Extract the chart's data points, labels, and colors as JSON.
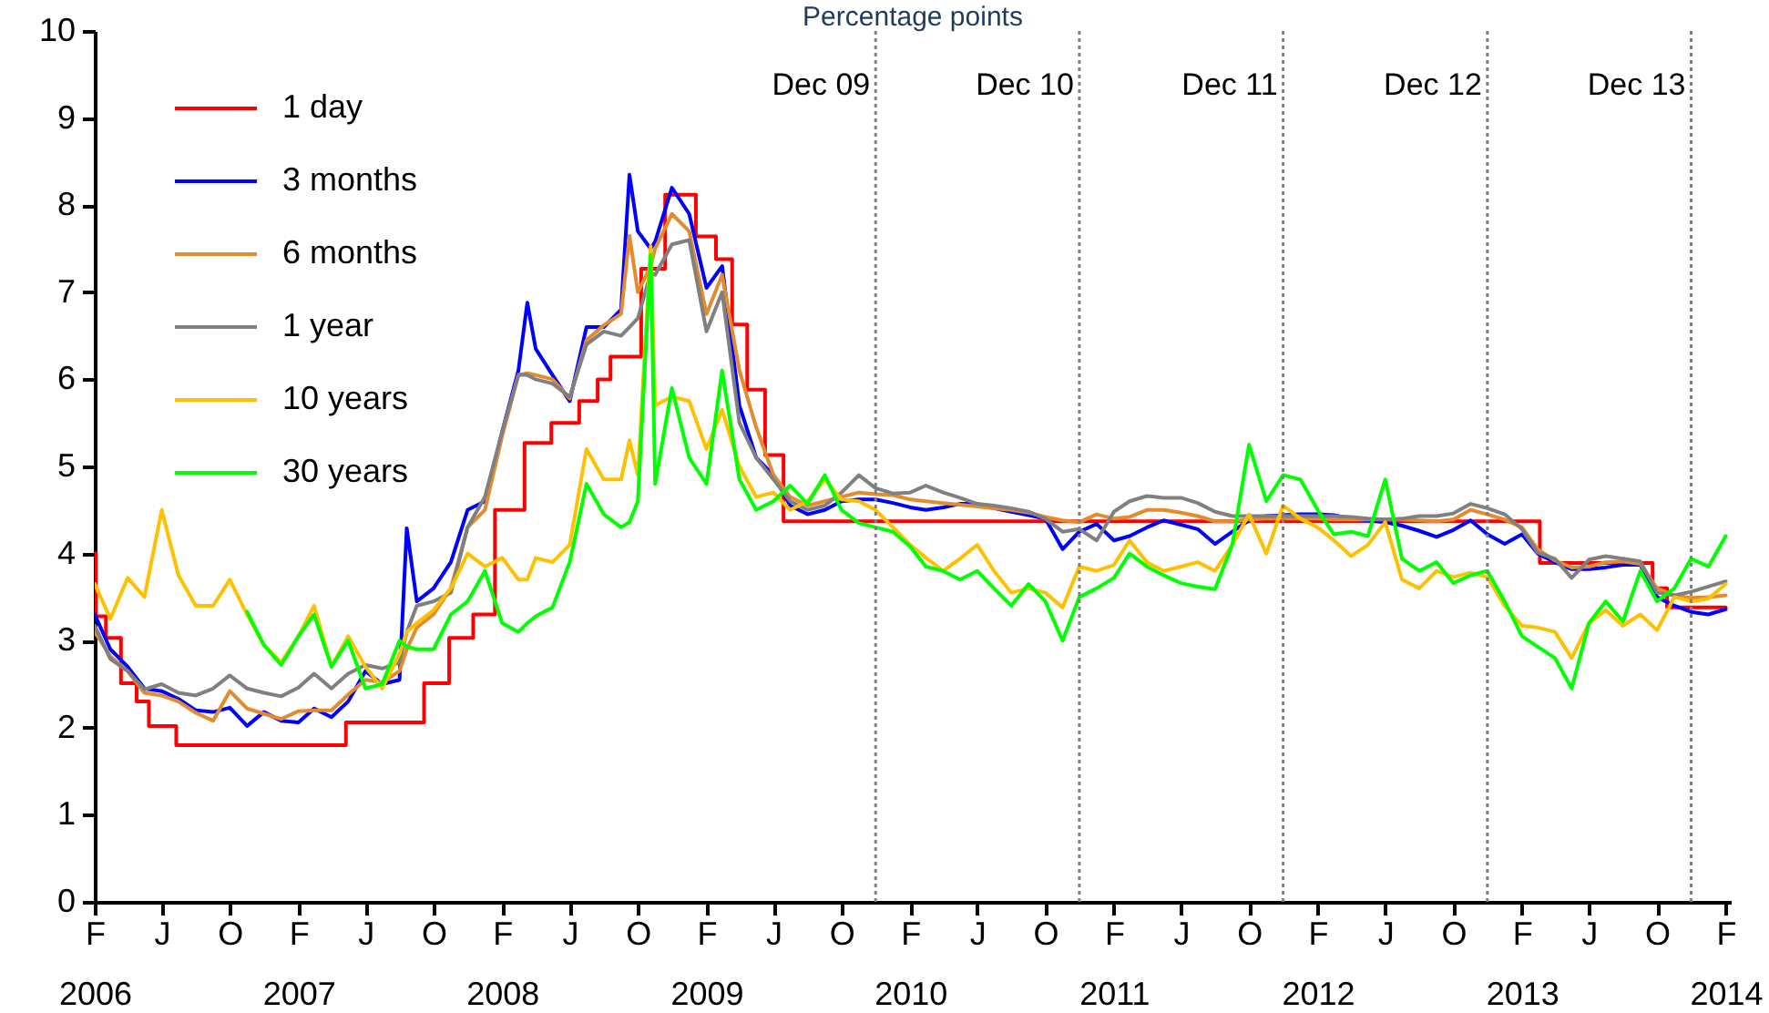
{
  "chart_data": {
    "type": "line",
    "title": "Percentage points",
    "x": [
      "2006-02",
      "2006-03",
      "2006-04",
      "2006-05",
      "2006-06",
      "2006-07",
      "2006-08",
      "2006-09",
      "2006-10",
      "2006-11",
      "2006-12",
      "2007-01",
      "2007-02",
      "2007-03",
      "2007-04",
      "2007-05",
      "2007-06",
      "2007-07",
      "2007-08",
      "2007-08-14",
      "2007-09",
      "2007-10",
      "2007-11",
      "2007-12",
      "2008-01",
      "2008-02",
      "2008-03",
      "2008-03-17",
      "2008-04",
      "2008-05",
      "2008-06",
      "2008-07",
      "2008-08",
      "2008-09",
      "2008-09-16",
      "2008-10",
      "2008-10-24",
      "2008-11",
      "2008-12",
      "2009-01",
      "2009-02",
      "2009-03",
      "2009-04",
      "2009-05",
      "2009-06",
      "2009-07",
      "2009-08",
      "2009-09",
      "2009-10",
      "2009-11",
      "2009-12",
      "2010-01",
      "2010-02",
      "2010-03",
      "2010-04",
      "2010-05",
      "2010-06",
      "2010-07",
      "2010-08",
      "2010-09",
      "2010-10",
      "2010-11",
      "2010-12",
      "2011-01",
      "2011-02",
      "2011-03",
      "2011-04",
      "2011-05",
      "2011-06",
      "2011-07",
      "2011-08",
      "2011-09",
      "2011-10",
      "2011-11",
      "2011-12",
      "2012-01",
      "2012-02",
      "2012-03",
      "2012-04",
      "2012-05",
      "2012-06",
      "2012-07",
      "2012-08",
      "2012-09",
      "2012-10",
      "2012-11",
      "2012-12",
      "2013-01",
      "2013-02",
      "2013-03",
      "2013-04",
      "2013-05",
      "2013-06",
      "2013-07",
      "2013-08",
      "2013-09",
      "2013-10",
      "2013-11",
      "2013-12",
      "2014-01",
      "2014-02"
    ],
    "series": [
      {
        "name": "1 day",
        "type": "step",
        "color": "#ff0000",
        "x": [
          "2006-02-01",
          "2006-02-03",
          "2006-02-21",
          "2006-03-20",
          "2006-04-17",
          "2006-05-09",
          "2006-06-27",
          "2007-04-27",
          "2007-09-14",
          "2007-10-29",
          "2007-12-11",
          "2008-01-19",
          "2008-03-12",
          "2008-04-29",
          "2008-06-18",
          "2008-07-21",
          "2008-08-13",
          "2008-10-07",
          "2008-11-19",
          "2009-01-13",
          "2009-02-18",
          "2009-03-19",
          "2009-04-15",
          "2009-05-17",
          "2009-06-19",
          "2013-03-05",
          "2013-09-23",
          "2013-10-19",
          "2014-02-01"
        ],
        "values": [
          4.0,
          3.28,
          3.03,
          2.51,
          2.3,
          2.02,
          1.8,
          2.06,
          2.51,
          3.03,
          3.3,
          4.5,
          5.27,
          5.5,
          5.75,
          6.0,
          6.26,
          7.27,
          8.12,
          7.64,
          7.38,
          6.63,
          5.88,
          5.13,
          4.37,
          3.89,
          3.6,
          3.38,
          3.38
        ]
      },
      {
        "name": "3 months",
        "color": "#0000ff",
        "values": [
          3.3,
          2.9,
          2.7,
          2.45,
          2.42,
          2.33,
          2.2,
          2.18,
          2.23,
          2.02,
          2.18,
          2.08,
          2.06,
          2.22,
          2.12,
          2.3,
          2.65,
          2.5,
          2.55,
          4.29,
          3.45,
          3.6,
          3.9,
          4.5,
          4.6,
          5.4,
          6.1,
          6.88,
          6.35,
          6.05,
          5.75,
          6.6,
          6.6,
          6.8,
          8.35,
          7.7,
          7.5,
          7.58,
          8.2,
          7.9,
          7.05,
          7.3,
          5.7,
          5.1,
          4.9,
          4.55,
          4.45,
          4.5,
          4.6,
          4.62,
          4.62,
          4.58,
          4.53,
          4.5,
          4.53,
          4.57,
          4.57,
          4.52,
          4.48,
          4.44,
          4.4,
          4.05,
          4.25,
          4.34,
          4.15,
          4.2,
          4.3,
          4.38,
          4.33,
          4.28,
          4.11,
          4.25,
          4.38,
          4.43,
          4.44,
          4.45,
          4.45,
          4.44,
          4.4,
          4.38,
          4.36,
          4.32,
          4.26,
          4.19,
          4.27,
          4.38,
          4.22,
          4.11,
          4.22,
          4.0,
          3.9,
          3.82,
          3.82,
          3.84,
          3.87,
          3.87,
          3.5,
          3.4,
          3.33,
          3.3,
          3.36
        ]
      },
      {
        "name": "6 months",
        "color": "#e38b2f",
        "values": [
          3.1,
          2.82,
          2.65,
          2.4,
          2.37,
          2.3,
          2.17,
          2.08,
          2.42,
          2.22,
          2.16,
          2.1,
          2.19,
          2.2,
          2.2,
          2.38,
          2.55,
          2.52,
          2.65,
          2.9,
          3.15,
          3.3,
          3.6,
          4.3,
          4.5,
          5.35,
          6.05,
          6.07,
          6.05,
          6.0,
          5.78,
          6.45,
          6.62,
          6.75,
          7.65,
          7.0,
          7.3,
          7.5,
          7.9,
          7.7,
          6.75,
          7.2,
          6.1,
          5.45,
          4.9,
          4.65,
          4.55,
          4.6,
          4.65,
          4.7,
          4.68,
          4.67,
          4.62,
          4.6,
          4.58,
          4.56,
          4.54,
          4.52,
          4.5,
          4.47,
          4.42,
          4.38,
          4.36,
          4.45,
          4.4,
          4.42,
          4.5,
          4.5,
          4.47,
          4.43,
          4.37,
          4.37,
          4.39,
          4.4,
          4.4,
          4.4,
          4.4,
          4.39,
          4.39,
          4.39,
          4.39,
          4.39,
          4.38,
          4.37,
          4.39,
          4.5,
          4.45,
          4.39,
          4.3,
          4.05,
          3.92,
          3.84,
          3.85,
          3.9,
          3.91,
          3.88,
          3.6,
          3.52,
          3.49,
          3.5,
          3.52
        ]
      },
      {
        "name": "1 year",
        "color": "#808080",
        "values": [
          3.17,
          2.79,
          2.65,
          2.44,
          2.5,
          2.4,
          2.37,
          2.45,
          2.6,
          2.45,
          2.4,
          2.36,
          2.46,
          2.62,
          2.45,
          2.62,
          2.72,
          2.68,
          2.75,
          3.1,
          3.4,
          3.45,
          3.55,
          4.3,
          4.65,
          5.4,
          6.05,
          6.05,
          6.0,
          5.95,
          5.8,
          6.4,
          6.55,
          6.5,
          6.6,
          6.7,
          7.22,
          7.2,
          7.55,
          7.6,
          6.55,
          7.0,
          5.5,
          5.1,
          4.85,
          4.6,
          4.5,
          4.55,
          4.7,
          4.9,
          4.75,
          4.69,
          4.7,
          4.78,
          4.7,
          4.64,
          4.57,
          4.55,
          4.52,
          4.48,
          4.4,
          4.25,
          4.28,
          4.15,
          4.48,
          4.6,
          4.66,
          4.64,
          4.64,
          4.58,
          4.48,
          4.43,
          4.43,
          4.43,
          4.43,
          4.43,
          4.43,
          4.43,
          4.42,
          4.4,
          4.39,
          4.4,
          4.43,
          4.43,
          4.46,
          4.57,
          4.52,
          4.45,
          4.28,
          4.01,
          3.94,
          3.72,
          3.93,
          3.97,
          3.94,
          3.91,
          3.55,
          3.52,
          3.56,
          3.62,
          3.68
        ]
      },
      {
        "name": "10 years",
        "color": "#ffc000",
        "values": [
          3.65,
          3.25,
          3.72,
          3.5,
          4.5,
          3.75,
          3.4,
          3.4,
          3.7,
          3.3,
          2.95,
          2.75,
          3.05,
          3.4,
          2.7,
          3.05,
          2.7,
          2.45,
          2.85,
          3.1,
          3.2,
          3.35,
          3.6,
          4.0,
          3.85,
          3.95,
          3.7,
          3.7,
          3.95,
          3.9,
          4.1,
          5.2,
          4.85,
          4.85,
          5.3,
          4.9,
          7.53,
          5.7,
          5.8,
          5.75,
          5.2,
          5.65,
          5.0,
          4.65,
          4.7,
          4.5,
          4.6,
          4.85,
          4.62,
          4.6,
          4.5,
          4.3,
          4.1,
          3.95,
          3.8,
          3.94,
          4.1,
          3.8,
          3.55,
          3.6,
          3.55,
          3.38,
          3.85,
          3.8,
          3.87,
          4.15,
          3.9,
          3.8,
          3.85,
          3.9,
          3.8,
          4.1,
          4.45,
          4.0,
          4.55,
          4.4,
          4.3,
          4.15,
          3.97,
          4.1,
          4.36,
          3.7,
          3.6,
          3.8,
          3.73,
          3.78,
          3.73,
          3.4,
          3.17,
          3.15,
          3.1,
          2.8,
          3.2,
          3.35,
          3.17,
          3.3,
          3.12,
          3.5,
          3.45,
          3.48,
          3.65
        ]
      },
      {
        "name": "30 years",
        "color": "#00ff00",
        "values": [
          null,
          null,
          null,
          null,
          null,
          null,
          null,
          null,
          null,
          3.33,
          2.95,
          2.72,
          3.05,
          3.3,
          2.7,
          3.0,
          2.45,
          2.5,
          3.0,
          2.93,
          2.9,
          2.9,
          3.3,
          3.45,
          3.8,
          3.2,
          3.1,
          3.2,
          3.28,
          3.38,
          3.9,
          4.8,
          4.45,
          4.3,
          4.36,
          4.6,
          7.43,
          4.8,
          5.9,
          5.1,
          4.8,
          6.1,
          4.85,
          4.5,
          4.6,
          4.78,
          4.57,
          4.9,
          4.5,
          4.35,
          4.3,
          4.25,
          4.08,
          3.85,
          3.8,
          3.7,
          3.8,
          3.6,
          3.4,
          3.65,
          3.45,
          3.0,
          3.5,
          3.6,
          3.72,
          4.0,
          3.85,
          3.75,
          3.66,
          3.62,
          3.59,
          4.1,
          5.25,
          4.6,
          4.9,
          4.85,
          4.5,
          4.22,
          4.25,
          4.2,
          4.85,
          3.94,
          3.8,
          3.9,
          3.66,
          3.75,
          3.8,
          3.45,
          3.05,
          2.93,
          2.8,
          2.45,
          3.2,
          3.45,
          3.22,
          3.8,
          3.45,
          3.6,
          3.94,
          3.85,
          4.2
        ]
      }
    ],
    "xlim": [
      "2006-02-01",
      "2014-02-10"
    ],
    "xticks": [
      {
        "value": "2006-02-01",
        "label": "F\n2006"
      },
      {
        "value": "2006-06-01",
        "label": "J"
      },
      {
        "value": "2006-10-01",
        "label": "O"
      },
      {
        "value": "2007-02-01",
        "label": "F\n2007"
      },
      {
        "value": "2007-06-01",
        "label": "J"
      },
      {
        "value": "2007-10-01",
        "label": "O"
      },
      {
        "value": "2008-02-01",
        "label": "F\n2008"
      },
      {
        "value": "2008-06-01",
        "label": "J"
      },
      {
        "value": "2008-10-01",
        "label": "O"
      },
      {
        "value": "2009-02-01",
        "label": "F\n2009"
      },
      {
        "value": "2009-06-01",
        "label": "J"
      },
      {
        "value": "2009-10-01",
        "label": "O"
      },
      {
        "value": "2010-02-01",
        "label": "F\n2010"
      },
      {
        "value": "2010-06-01",
        "label": "J"
      },
      {
        "value": "2010-10-01",
        "label": "O"
      },
      {
        "value": "2011-02-01",
        "label": "F\n2011"
      },
      {
        "value": "2011-06-01",
        "label": "J"
      },
      {
        "value": "2011-10-01",
        "label": "O"
      },
      {
        "value": "2012-02-01",
        "label": "F\n2012"
      },
      {
        "value": "2012-06-01",
        "label": "J"
      },
      {
        "value": "2012-10-01",
        "label": "O"
      },
      {
        "value": "2013-02-01",
        "label": "F\n2013"
      },
      {
        "value": "2013-06-01",
        "label": "J"
      },
      {
        "value": "2013-10-01",
        "label": "O"
      },
      {
        "value": "2014-02-01",
        "label": "F\n2014"
      }
    ],
    "ylim": [
      0,
      10
    ],
    "yticks": [
      0,
      1,
      2,
      3,
      4,
      5,
      6,
      7,
      8,
      9,
      10
    ],
    "ref_lines": [
      {
        "axis": "x",
        "value": "2009-12-01",
        "label": "Dec 09",
        "color": "#808080",
        "line_style": "dotted"
      },
      {
        "axis": "x",
        "value": "2010-12-01",
        "label": "Dec 10",
        "color": "#808080",
        "line_style": "dotted"
      },
      {
        "axis": "x",
        "value": "2011-12-01",
        "label": "Dec 11",
        "color": "#808080",
        "line_style": "dotted"
      },
      {
        "axis": "x",
        "value": "2012-12-01",
        "label": "Dec 12",
        "color": "#808080",
        "line_style": "dotted"
      },
      {
        "axis": "x",
        "value": "2013-12-01",
        "label": "Dec 13",
        "color": "#808080",
        "line_style": "dotted"
      }
    ],
    "legend": "top left"
  }
}
